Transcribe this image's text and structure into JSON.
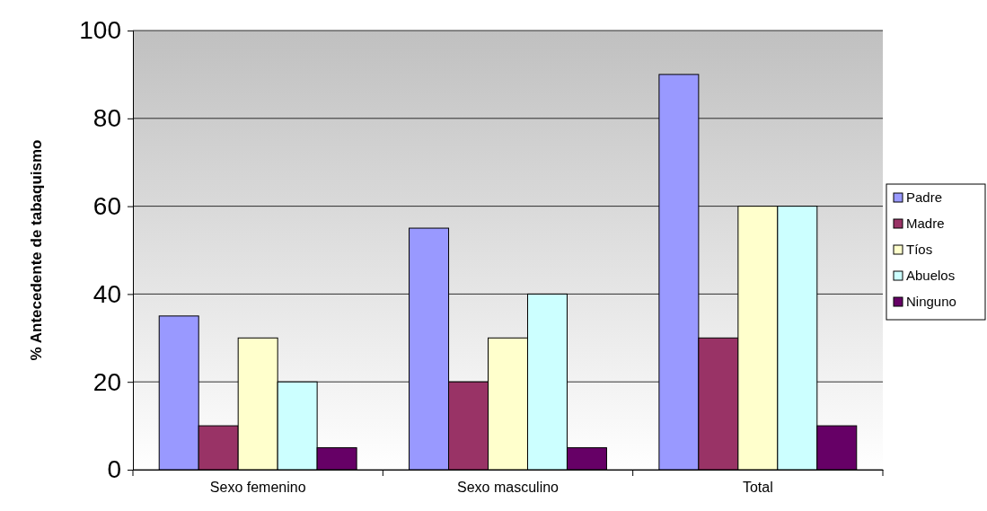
{
  "chart_data": {
    "type": "bar",
    "ylabel": "% Antecedente de tabaquismo",
    "categories": [
      "Sexo femenino",
      "Sexo masculino",
      "Total"
    ],
    "series": [
      {
        "name": "Padre",
        "color": "#9999ff",
        "values": [
          35,
          55,
          90
        ]
      },
      {
        "name": "Madre",
        "color": "#993366",
        "values": [
          10,
          20,
          30
        ]
      },
      {
        "name": "Tíos",
        "color": "#ffffcc",
        "values": [
          30,
          30,
          60
        ]
      },
      {
        "name": "Abuelos",
        "color": "#ccffff",
        "values": [
          20,
          40,
          60
        ]
      },
      {
        "name": "Ninguno",
        "color": "#660066",
        "values": [
          5,
          5,
          10
        ]
      }
    ],
    "ylim": [
      0,
      100
    ],
    "yticks": [
      0,
      20,
      40,
      60,
      80,
      100
    ],
    "grid": "y",
    "legend": "right"
  }
}
